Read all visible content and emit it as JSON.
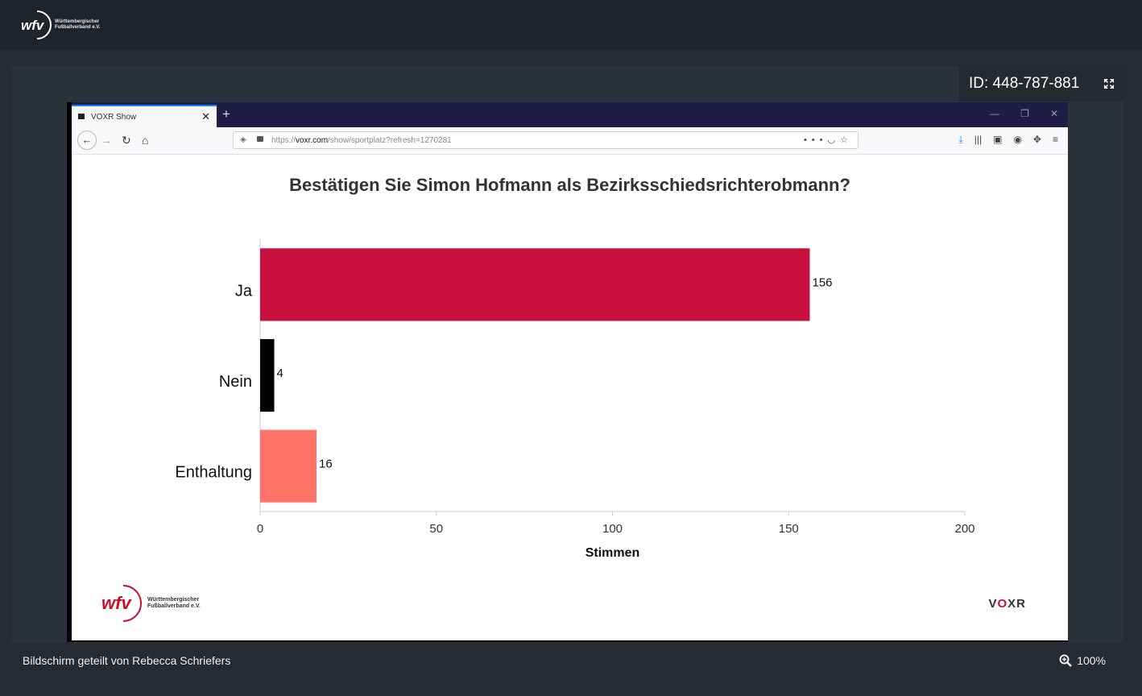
{
  "app": {
    "logo_text": "wfv",
    "logo_line1": "Württembergischer",
    "logo_line2": "Fußballverband e.V."
  },
  "meeting": {
    "id_label": "ID: 448-787-881",
    "share_text": "Bildschirm geteilt von Rebecca Schriefers",
    "zoom": "100%"
  },
  "browser": {
    "tab_title": "VOXR Show",
    "url_prefix": "https://",
    "url_domain": "voxr.com",
    "url_path": "/show/sportplatz?refresh=1270281"
  },
  "slide": {
    "brand": "VOXR",
    "logo_text": "wfv",
    "logo_line1": "Württembergischer",
    "logo_line2": "Fußballverband e.V."
  },
  "chart_data": {
    "type": "bar",
    "orientation": "horizontal",
    "title": "Bestätigen Sie Simon Hofmann als Bezirksschiedsrichterobmann?",
    "xlabel": "Stimmen",
    "ylabel": "",
    "categories": [
      "Ja",
      "Nein",
      "Enthaltung"
    ],
    "values": [
      156,
      4,
      16
    ],
    "colors": [
      "#c8103e",
      "#000000",
      "#ff7368"
    ],
    "xlim": [
      0,
      200
    ],
    "xticks": [
      0,
      50,
      100,
      150,
      200
    ],
    "grid": false,
    "legend": "none"
  }
}
